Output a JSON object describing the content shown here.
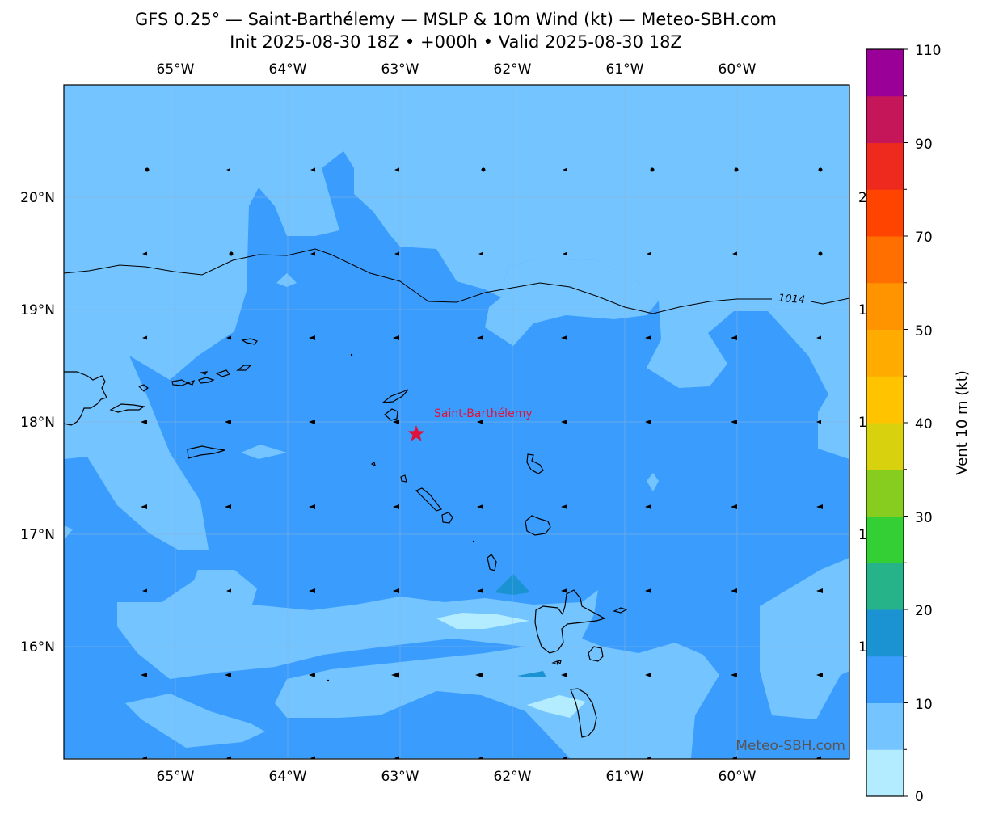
{
  "title_line1": "GFS 0.25° — Saint-Barthélemy — MSLP & 10m Wind (kt) — Meteo-SBH.com",
  "title_line2": "Init 2025-08-30 18Z • +000h • Valid 2025-08-30 18Z",
  "map": {
    "lon_ticks": [
      "65°W",
      "64°W",
      "63°W",
      "62°W",
      "61°W",
      "60°W"
    ],
    "lat_ticks": [
      "20°N",
      "19°N",
      "18°N",
      "17°N",
      "16°N"
    ],
    "isobar_label": "1014",
    "place_label": "Saint-Barthélemy",
    "watermark": "Meteo-SBH.com",
    "marker_color": "#dc143c"
  },
  "colorbar": {
    "label": "Vent 10 m (kt)",
    "tick_labels": [
      "0",
      "10",
      "20",
      "30",
      "40",
      "50",
      "70",
      "90",
      "110"
    ],
    "colors": [
      "#b3ecff",
      "#74c4ff",
      "#3a9dfe",
      "#1b93d2",
      "#26b38a",
      "#34cf34",
      "#86cd1f",
      "#d8d10e",
      "#ffc300",
      "#ffab00",
      "#ff9400",
      "#ff6f00",
      "#ff4400",
      "#ee2a1f",
      "#c6165a",
      "#9a0097"
    ]
  }
}
